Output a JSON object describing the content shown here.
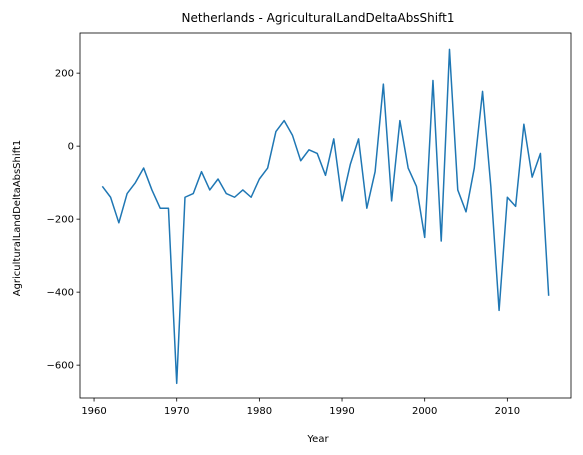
{
  "chart_data": {
    "type": "line",
    "title": "Netherlands - AgriculturalLandDeltaAbsShift1",
    "xlabel": "Year",
    "ylabel": "AgriculturalLandDeltaAbsShift1",
    "xlim": [
      1958.3,
      2017.7
    ],
    "ylim": [
      -690,
      310
    ],
    "xticks": [
      1960,
      1970,
      1980,
      1990,
      2000,
      2010
    ],
    "yticks": [
      -600,
      -400,
      -200,
      0,
      200
    ],
    "ytick_labels": [
      "−600",
      "−400",
      "−200",
      "0",
      "200"
    ],
    "grid": false,
    "line_color": "#1f77b4",
    "series": [
      {
        "x": [
          1961,
          1962,
          1963,
          1964,
          1965,
          1966,
          1967,
          1968,
          1969,
          1970,
          1971,
          1972,
          1973,
          1974,
          1975,
          1976,
          1977,
          1978,
          1979,
          1980,
          1981,
          1982,
          1983,
          1984,
          1985,
          1986,
          1987,
          1988,
          1989,
          1990,
          1991,
          1992,
          1993,
          1994,
          1995,
          1996,
          1997,
          1998,
          1999,
          2000,
          2001,
          2002,
          2003,
          2004,
          2005,
          2006,
          2007,
          2008,
          2009,
          2010,
          2011,
          2012,
          2013,
          2014,
          2015
        ],
        "values": [
          -110,
          -140,
          -210,
          -130,
          -100,
          -60,
          -120,
          -170,
          -170,
          -650,
          -140,
          -130,
          -70,
          -120,
          -90,
          -130,
          -140,
          -120,
          -140,
          -90,
          -60,
          40,
          70,
          30,
          -40,
          -10,
          -20,
          -80,
          20,
          -150,
          -50,
          20,
          -170,
          -70,
          170,
          -150,
          70,
          -60,
          -110,
          -250,
          180,
          -260,
          265,
          -120,
          -180,
          -60,
          150,
          -110,
          -450,
          -140,
          -165,
          60,
          -85,
          -20,
          -410
        ]
      }
    ]
  }
}
